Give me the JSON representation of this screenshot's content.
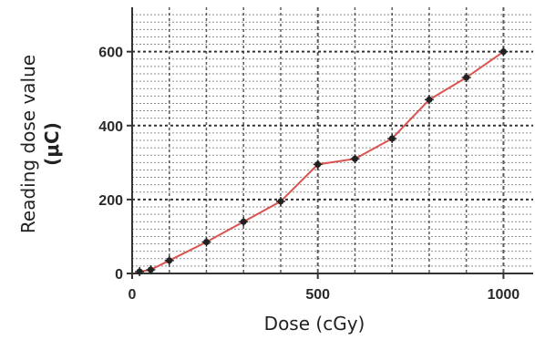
{
  "chart_data": {
    "type": "line",
    "title": "",
    "xlabel": "Dose (cGy)",
    "ylabel": "Reading dose value",
    "ylabel_unit": "(μC)",
    "xlim": [
      0,
      1080
    ],
    "ylim": [
      0,
      720
    ],
    "x_ticks": [
      0,
      500,
      1000
    ],
    "y_ticks": [
      0,
      200,
      400,
      600
    ],
    "grid": true,
    "legend": "none",
    "series": [
      {
        "x": [
          20,
          50,
          100,
          200,
          300,
          400,
          500,
          600,
          700,
          800,
          900,
          1000
        ],
        "y": [
          5,
          10,
          35,
          85,
          140,
          195,
          295,
          310,
          365,
          470,
          530,
          600
        ]
      }
    ]
  },
  "colors": {
    "line": "#d9534f",
    "marker": "#222222",
    "grid": "#333333",
    "axis": "#333333"
  }
}
